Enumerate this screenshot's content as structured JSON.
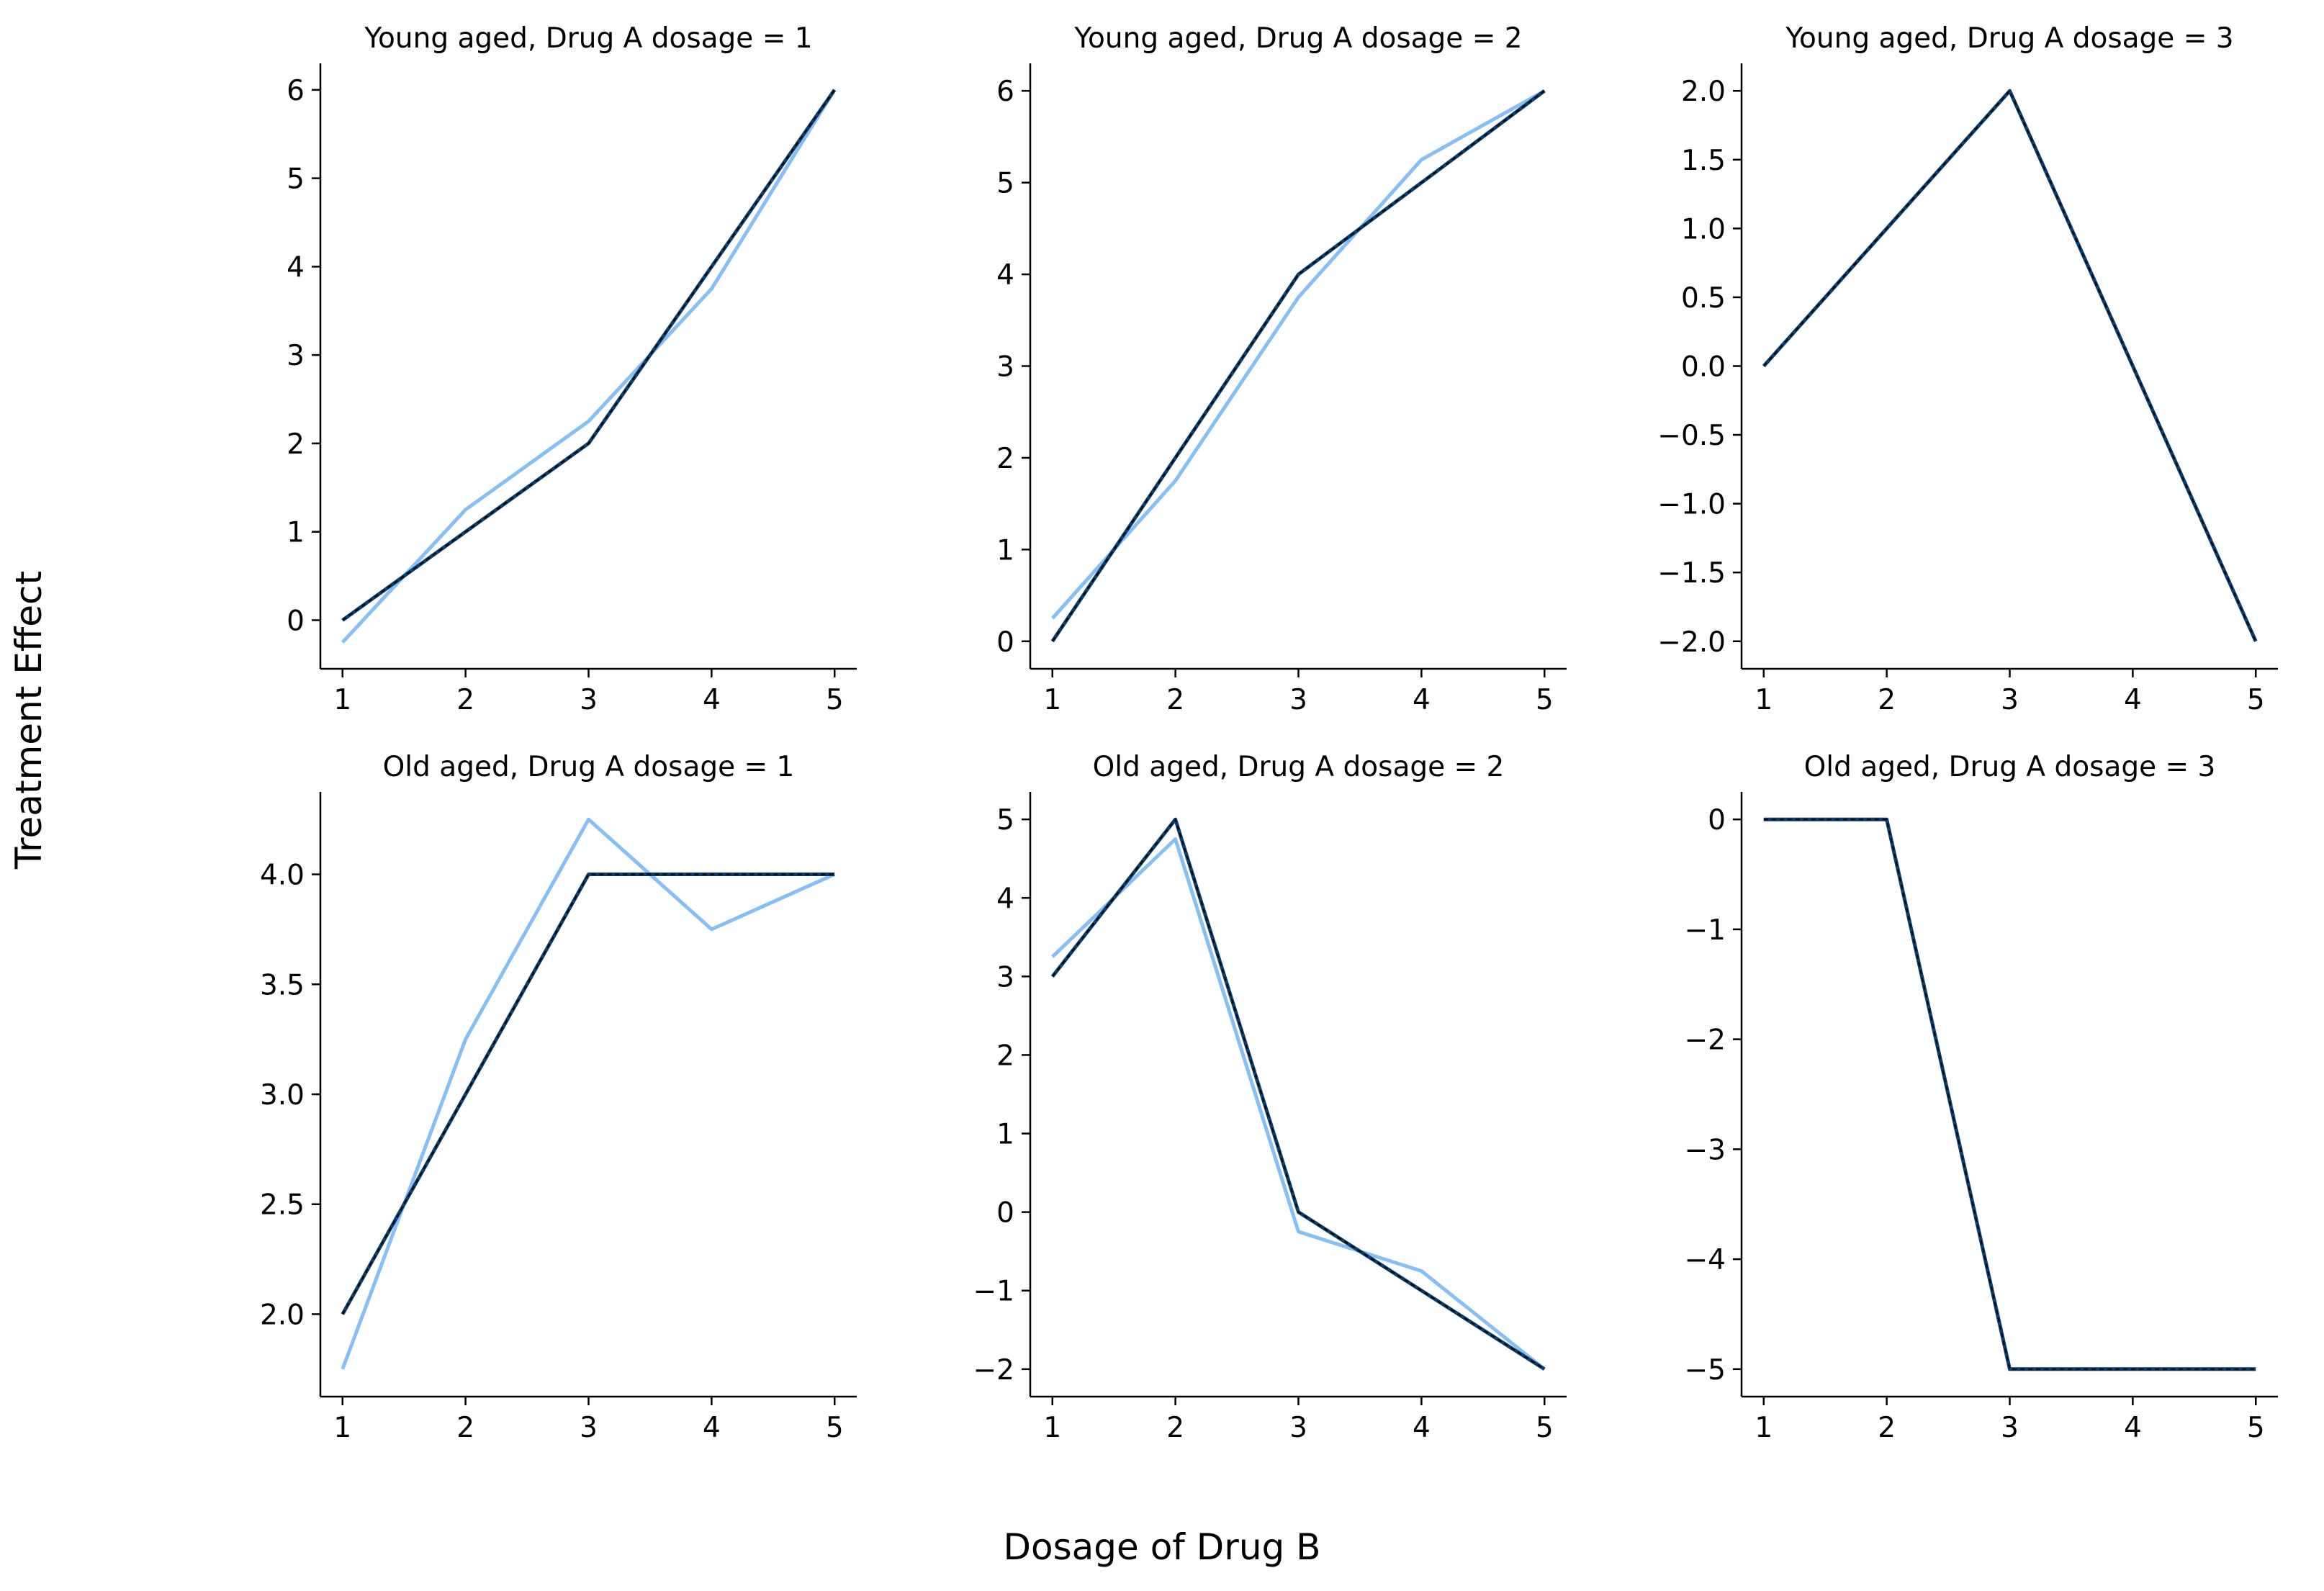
{
  "figure": {
    "xlabel": "Dosage of Drug B",
    "ylabel": "Treatment Effect"
  },
  "colors": {
    "light_series": "#86bff5",
    "dark_series": "#0a3e6e",
    "dash_overlay": "#000000",
    "axis": "#000000"
  },
  "chart_data": [
    {
      "type": "line",
      "title": "Young aged, Drug A dosage = 1",
      "x": [
        1,
        2,
        3,
        4,
        5
      ],
      "yticks": [
        "0",
        "1",
        "2",
        "3",
        "4",
        "5",
        "6"
      ],
      "ytick_values": [
        0,
        1,
        2,
        3,
        4,
        5,
        6
      ],
      "ylim": [
        -0.55,
        6.3
      ],
      "series": [
        {
          "values": [
            -0.25,
            1.25,
            2.25,
            3.75,
            6
          ]
        },
        {
          "values": [
            0,
            1,
            2,
            4,
            6
          ]
        }
      ]
    },
    {
      "type": "line",
      "title": "Young aged, Drug A dosage = 2",
      "x": [
        1,
        2,
        3,
        4,
        5
      ],
      "yticks": [
        "0",
        "1",
        "2",
        "3",
        "4",
        "5",
        "6"
      ],
      "ytick_values": [
        0,
        1,
        2,
        3,
        4,
        5,
        6
      ],
      "ylim": [
        -0.3,
        6.3
      ],
      "series": [
        {
          "values": [
            0.25,
            1.75,
            3.75,
            5.25,
            6
          ]
        },
        {
          "values": [
            0,
            2,
            4,
            5,
            6
          ]
        }
      ]
    },
    {
      "type": "line",
      "title": "Young aged, Drug A dosage = 3",
      "x": [
        1,
        2,
        3,
        4,
        5
      ],
      "yticks": [
        "2.0",
        "1.5",
        "1.0",
        "0.5",
        "0.0",
        "−0.5",
        "−1.0",
        "−1.5",
        "−2.0"
      ],
      "ytick_values": [
        2.0,
        1.5,
        1.0,
        0.5,
        0.0,
        -0.5,
        -1.0,
        -1.5,
        -2.0
      ],
      "ylim": [
        -2.2,
        2.2
      ],
      "series": [
        {
          "values": [
            0,
            1,
            2,
            0,
            -2
          ]
        },
        {
          "values": [
            0,
            1,
            2,
            0,
            -2
          ]
        }
      ]
    },
    {
      "type": "line",
      "title": "Old aged, Drug A dosage = 1",
      "x": [
        1,
        2,
        3,
        4,
        5
      ],
      "yticks": [
        "4.0",
        "3.5",
        "3.0",
        "2.5",
        "2.0"
      ],
      "ytick_values": [
        4.0,
        3.5,
        3.0,
        2.5,
        2.0
      ],
      "ylim": [
        1.625,
        4.375
      ],
      "series": [
        {
          "values": [
            1.75,
            3.25,
            4.25,
            3.75,
            4
          ]
        },
        {
          "values": [
            2,
            3,
            4,
            4,
            4
          ]
        }
      ]
    },
    {
      "type": "line",
      "title": "Old aged, Drug A dosage = 2",
      "x": [
        1,
        2,
        3,
        4,
        5
      ],
      "yticks": [
        "5",
        "4",
        "3",
        "2",
        "1",
        "0",
        "−1",
        "−2"
      ],
      "ytick_values": [
        5,
        4,
        3,
        2,
        1,
        0,
        -1,
        -2
      ],
      "ylim": [
        -2.35,
        5.35
      ],
      "series": [
        {
          "values": [
            3.25,
            4.75,
            -0.25,
            -0.75,
            -2
          ]
        },
        {
          "values": [
            3,
            5,
            0,
            -1,
            -2
          ]
        }
      ]
    },
    {
      "type": "line",
      "title": "Old aged, Drug A dosage = 3",
      "x": [
        1,
        2,
        3,
        4,
        5
      ],
      "yticks": [
        "0",
        "−1",
        "−2",
        "−3",
        "−4",
        "−5"
      ],
      "ytick_values": [
        0,
        -1,
        -2,
        -3,
        -4,
        -5
      ],
      "ylim": [
        -5.25,
        0.25
      ],
      "series": [
        {
          "values": [
            0,
            0,
            -5,
            -5,
            -5
          ]
        },
        {
          "values": [
            0,
            0,
            -5,
            -5,
            -5
          ]
        }
      ]
    }
  ]
}
